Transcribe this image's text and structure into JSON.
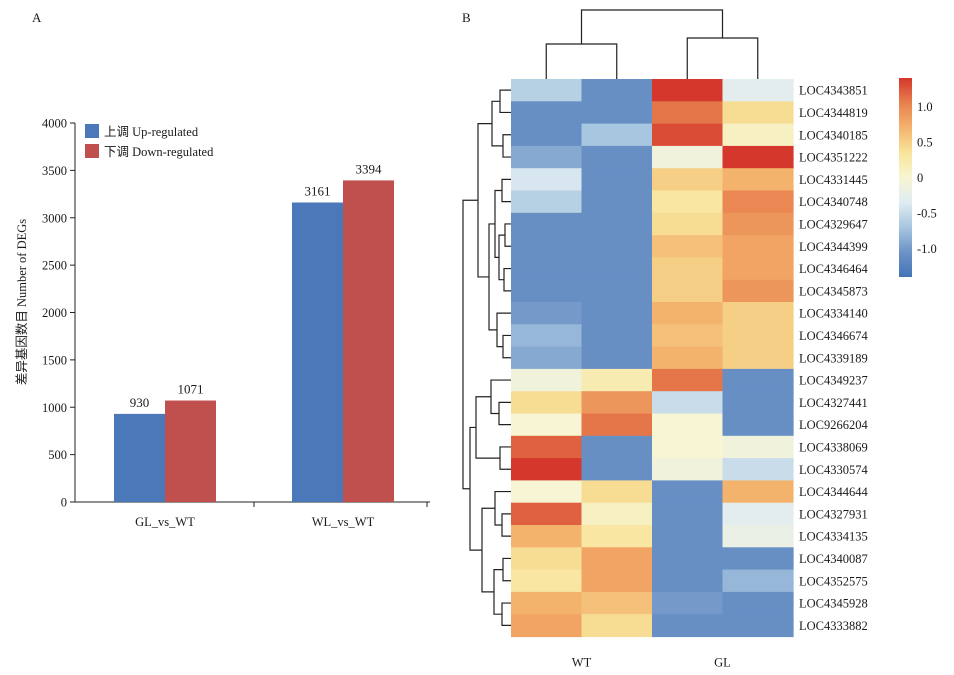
{
  "panel_a_label": "A",
  "panel_b_label": "B",
  "chart_data": [
    {
      "type": "bar",
      "categories": [
        "GL_vs_WT",
        "WL_vs_WT"
      ],
      "series": [
        {
          "name": "上调 Up-regulated",
          "color": "#4a78b9",
          "values": [
            930,
            3161
          ]
        },
        {
          "name": "下调 Down-regulated",
          "color": "#c0504d",
          "values": [
            1071,
            3394
          ]
        }
      ],
      "ylabel": "差异基因数目 Number of DEGs",
      "xlabel": "",
      "ylim": [
        0,
        4000
      ],
      "yticks": [
        0,
        500,
        1000,
        1500,
        2000,
        2500,
        3000,
        3500,
        4000
      ],
      "legend": "top-left",
      "data_labels": true
    },
    {
      "type": "heatmap",
      "columns": [
        "WT",
        "WT",
        "GL",
        "GL"
      ],
      "column_group_labels": [
        "WT",
        "GL"
      ],
      "rows": [
        "LOC4343851",
        "LOC4344819",
        "LOC4340185",
        "LOC4351222",
        "LOC4331445",
        "LOC4340748",
        "LOC4329647",
        "LOC4344399",
        "LOC4346464",
        "LOC4345873",
        "LOC4334140",
        "LOC4346674",
        "LOC4339189",
        "LOC4349237",
        "LOC4327441",
        "LOC9266204",
        "LOC4338069",
        "LOC4330574",
        "LOC4344644",
        "LOC4327931",
        "LOC4334135",
        "LOC4340087",
        "LOC4352575",
        "LOC4345928",
        "LOC4333882"
      ],
      "values": [
        [
          -0.6,
          -1.1,
          1.4,
          -0.3
        ],
        [
          -1.1,
          -1.1,
          1.1,
          0.4
        ],
        [
          -1.1,
          -0.7,
          1.3,
          0.1
        ],
        [
          -0.9,
          -1.1,
          -0.1,
          1.4
        ],
        [
          -0.4,
          -1.1,
          0.5,
          0.7
        ],
        [
          -0.6,
          -1.1,
          0.3,
          1.0
        ],
        [
          -1.1,
          -1.1,
          0.4,
          0.9
        ],
        [
          -1.1,
          -1.1,
          0.6,
          0.8
        ],
        [
          -1.1,
          -1.1,
          0.5,
          0.8
        ],
        [
          -1.1,
          -1.1,
          0.5,
          0.9
        ],
        [
          -1.0,
          -1.1,
          0.7,
          0.5
        ],
        [
          -0.8,
          -1.1,
          0.6,
          0.5
        ],
        [
          -0.9,
          -1.1,
          0.7,
          0.5
        ],
        [
          -0.1,
          0.2,
          1.1,
          -1.1
        ],
        [
          0.4,
          0.9,
          -0.5,
          -1.1
        ],
        [
          0.0,
          1.1,
          0.0,
          -1.1
        ],
        [
          1.2,
          -1.1,
          0.0,
          -0.1
        ],
        [
          1.4,
          -1.1,
          -0.1,
          -0.5
        ],
        [
          0.0,
          0.4,
          -1.1,
          0.7
        ],
        [
          1.2,
          0.1,
          -1.1,
          -0.3
        ],
        [
          0.7,
          0.3,
          -1.1,
          -0.2
        ],
        [
          0.4,
          0.8,
          -1.1,
          -1.1
        ],
        [
          0.3,
          0.8,
          -1.1,
          -0.8
        ],
        [
          0.7,
          0.6,
          -1.0,
          -1.1
        ],
        [
          0.8,
          0.4,
          -1.1,
          -1.1
        ]
      ],
      "colorbar": {
        "range": [
          -1.4,
          1.4
        ],
        "ticks": [
          1.0,
          0.5,
          0,
          -0.5,
          -1.0
        ],
        "tick_labels": [
          "1.0",
          "0.5",
          "0",
          "-0.5",
          "-1.0"
        ],
        "colors": [
          "#4474b6",
          "#6d93c6",
          "#a7c6df",
          "#e0ecf2",
          "#f7f5d3",
          "#f8e49a",
          "#f4b36d",
          "#e8804f",
          "#d6372c"
        ]
      }
    }
  ]
}
